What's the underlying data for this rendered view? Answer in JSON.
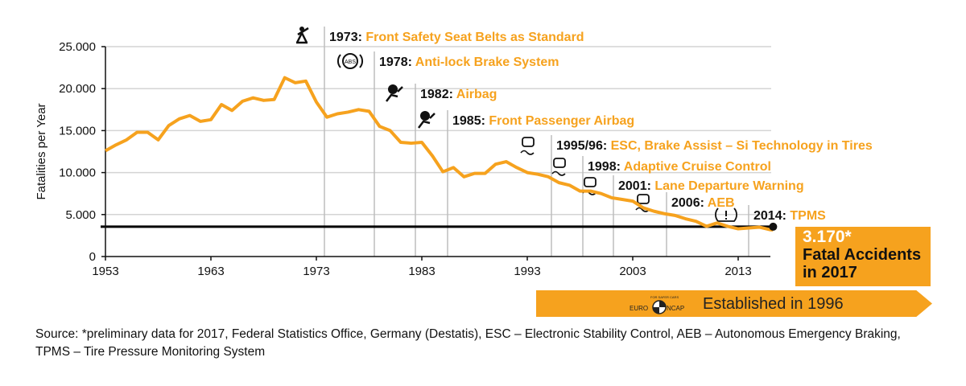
{
  "chart_data": {
    "type": "line",
    "title": "",
    "xlabel": "",
    "ylabel": "Fatalities per Year",
    "xlim": [
      1953,
      2017
    ],
    "ylim": [
      0,
      25000
    ],
    "x_ticks": [
      "1953",
      "1963",
      "1973",
      "1983",
      "1993",
      "2003",
      "2013"
    ],
    "y_ticks": [
      "0",
      "5.000",
      "10.000",
      "15.000",
      "20.000",
      "25.000"
    ],
    "grid": "horizontal",
    "line_color": "#f6a21e",
    "x": [
      1953,
      1954,
      1955,
      1956,
      1957,
      1958,
      1959,
      1960,
      1961,
      1962,
      1963,
      1964,
      1965,
      1966,
      1967,
      1968,
      1969,
      1970,
      1971,
      1972,
      1973,
      1974,
      1975,
      1976,
      1977,
      1978,
      1979,
      1980,
      1981,
      1982,
      1983,
      1984,
      1985,
      1986,
      1987,
      1988,
      1989,
      1990,
      1991,
      1992,
      1993,
      1994,
      1995,
      1996,
      1997,
      1998,
      1999,
      2000,
      2001,
      2002,
      2003,
      2004,
      2005,
      2006,
      2007,
      2008,
      2009,
      2010,
      2011,
      2012,
      2013,
      2014,
      2015,
      2016,
      2017
    ],
    "values": [
      12600,
      13300,
      13900,
      14800,
      14800,
      13900,
      15600,
      16400,
      16800,
      16100,
      16300,
      18100,
      17400,
      18500,
      18900,
      18600,
      18700,
      21300,
      20700,
      20900,
      18400,
      16600,
      17000,
      17200,
      17500,
      17300,
      15500,
      15000,
      13600,
      13500,
      13600,
      12000,
      10100,
      10600,
      9500,
      9900,
      9900,
      11000,
      11300,
      10600,
      10000,
      9800,
      9500,
      8800,
      8500,
      7800,
      7800,
      7500,
      7000,
      6800,
      6600,
      5800,
      5400,
      5100,
      4900,
      4500,
      4200,
      3600,
      4000,
      3600,
      3300,
      3400,
      3500,
      3200,
      3170
    ],
    "reference_line": {
      "value": 3170,
      "color": "#000000"
    },
    "milestones": [
      {
        "year": "1973",
        "label": "Front Safety Seat Belts as Standard",
        "icon": "seatbelt-icon"
      },
      {
        "year": "1978",
        "label": "Anti-lock Brake System",
        "icon": "abs-icon",
        "icon_text": "ABS"
      },
      {
        "year": "1982",
        "label": "Airbag",
        "icon": "airbag-icon"
      },
      {
        "year": "1985",
        "label": "Front Passenger Airbag",
        "icon": "airbag-icon"
      },
      {
        "year": "1995/96",
        "label": "ESC, Brake Assist – Si Technology in Tires",
        "icon": "skidding-car-icon"
      },
      {
        "year": "1998",
        "label": "Adaptive Cruise Control",
        "icon": "cruise-control-icon"
      },
      {
        "year": "2001",
        "label": "Lane Departure Warning",
        "icon": "lane-departure-icon"
      },
      {
        "year": "2006",
        "label": "AEB",
        "icon": "aeb-car-icon"
      },
      {
        "year": "2014",
        "label": "TPMS",
        "icon": "tire-pressure-icon"
      }
    ]
  },
  "callout": {
    "value": "3.170*",
    "text_line1": "Fatal Accidents",
    "text_line2": "in 2017"
  },
  "banner": {
    "text": "Established in 1996",
    "logo_text": "EURO NCAP",
    "logo_subtext": "FOR SAFER CARS"
  },
  "source": "Source: *preliminary data for 2017, Federal Statistics Office, Germany (Destatis), ESC – Electronic Stability Control, AEB – Autonomous Emergency Braking, TPMS – Tire Pressure Monitoring System",
  "colors": {
    "accent": "#f6a21e",
    "grid": "#d4d4d4",
    "milestone_line": "#bdbdbd"
  }
}
